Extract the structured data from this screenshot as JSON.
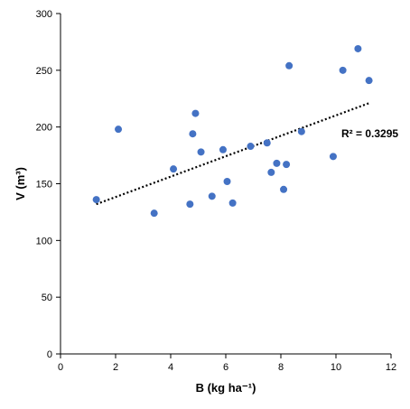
{
  "chart_data": {
    "type": "scatter",
    "title": "",
    "xlabel": "B (kg ha⁻¹)",
    "ylabel": "V (m³)",
    "xlim": [
      0,
      12
    ],
    "ylim": [
      0,
      300
    ],
    "x_ticks": [
      0,
      2,
      4,
      6,
      8,
      10,
      12
    ],
    "y_ticks": [
      0,
      50,
      100,
      150,
      200,
      250,
      300
    ],
    "x_tick_labels": [
      "0",
      "2",
      "4",
      "6",
      "8",
      "10",
      "12"
    ],
    "y_tick_labels": [
      "0",
      "50",
      "100",
      "150",
      "200",
      "250",
      "300"
    ],
    "grid": false,
    "legend": false,
    "point_color": "#4472C4",
    "trend_color": "#000000",
    "series": [
      {
        "points": [
          {
            "x": 1.3,
            "y": 136
          },
          {
            "x": 2.1,
            "y": 198
          },
          {
            "x": 3.4,
            "y": 124
          },
          {
            "x": 4.1,
            "y": 163
          },
          {
            "x": 4.7,
            "y": 132
          },
          {
            "x": 4.8,
            "y": 194
          },
          {
            "x": 4.9,
            "y": 212
          },
          {
            "x": 5.1,
            "y": 178
          },
          {
            "x": 5.5,
            "y": 139
          },
          {
            "x": 5.9,
            "y": 180
          },
          {
            "x": 6.05,
            "y": 152
          },
          {
            "x": 6.25,
            "y": 133
          },
          {
            "x": 6.9,
            "y": 183
          },
          {
            "x": 7.5,
            "y": 186
          },
          {
            "x": 7.65,
            "y": 160
          },
          {
            "x": 7.85,
            "y": 168
          },
          {
            "x": 8.1,
            "y": 145
          },
          {
            "x": 8.2,
            "y": 167
          },
          {
            "x": 8.3,
            "y": 254
          },
          {
            "x": 8.75,
            "y": 196
          },
          {
            "x": 9.9,
            "y": 174
          },
          {
            "x": 10.25,
            "y": 250
          },
          {
            "x": 10.8,
            "y": 269
          },
          {
            "x": 11.2,
            "y": 241
          }
        ]
      }
    ],
    "trendline": {
      "type": "linear",
      "x_start": 1.3,
      "y_start": 132,
      "x_end": 11.2,
      "y_end": 221,
      "style": "dotted"
    },
    "annotation": "R² = 0.3295"
  }
}
